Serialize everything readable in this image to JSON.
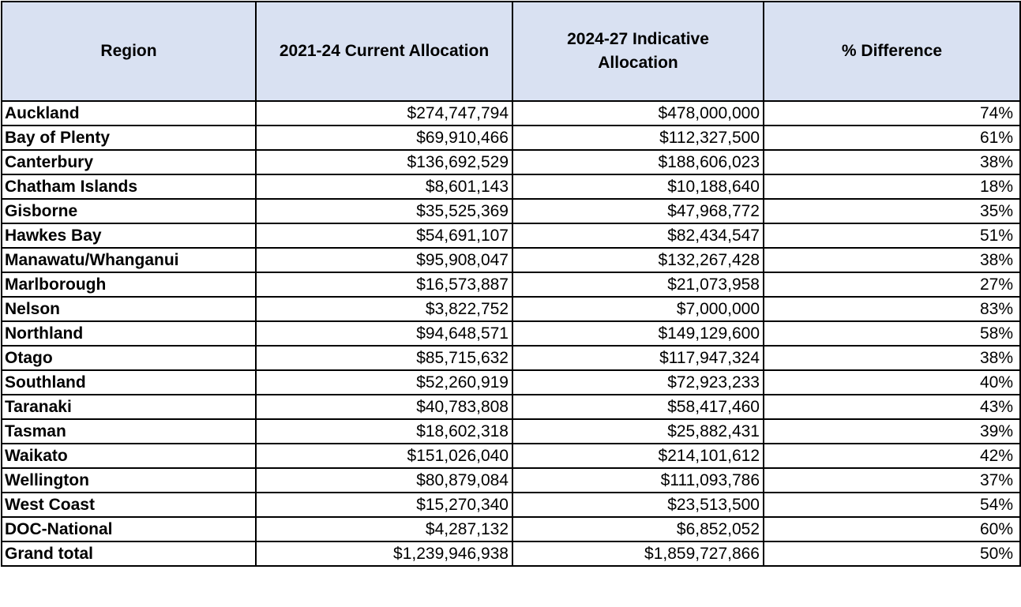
{
  "style": {
    "header_bg": "#d9e1f2",
    "border_color": "#000000",
    "text_color": "#000000"
  },
  "chart_data": {
    "type": "table",
    "columns": [
      "Region",
      "2021-24 Current Allocation",
      "2024-27 Indicative\nAllocation",
      "% Difference"
    ],
    "rows": [
      {
        "region": "Auckland",
        "current": "$274,747,794",
        "indicative": "$478,000,000",
        "difference": "74%"
      },
      {
        "region": "Bay of Plenty",
        "current": "$69,910,466",
        "indicative": "$112,327,500",
        "difference": "61%"
      },
      {
        "region": "Canterbury",
        "current": "$136,692,529",
        "indicative": "$188,606,023",
        "difference": "38%"
      },
      {
        "region": "Chatham Islands",
        "current": "$8,601,143",
        "indicative": "$10,188,640",
        "difference": "18%"
      },
      {
        "region": "Gisborne",
        "current": "$35,525,369",
        "indicative": "$47,968,772",
        "difference": "35%"
      },
      {
        "region": "Hawkes Bay",
        "current": "$54,691,107",
        "indicative": "$82,434,547",
        "difference": "51%"
      },
      {
        "region": "Manawatu/Whanganui",
        "current": "$95,908,047",
        "indicative": "$132,267,428",
        "difference": "38%"
      },
      {
        "region": "Marlborough",
        "current": "$16,573,887",
        "indicative": "$21,073,958",
        "difference": "27%"
      },
      {
        "region": "Nelson",
        "current": "$3,822,752",
        "indicative": "$7,000,000",
        "difference": "83%"
      },
      {
        "region": "Northland",
        "current": "$94,648,571",
        "indicative": "$149,129,600",
        "difference": "58%"
      },
      {
        "region": "Otago",
        "current": "$85,715,632",
        "indicative": "$117,947,324",
        "difference": "38%"
      },
      {
        "region": "Southland",
        "current": "$52,260,919",
        "indicative": "$72,923,233",
        "difference": "40%"
      },
      {
        "region": "Taranaki",
        "current": "$40,783,808",
        "indicative": "$58,417,460",
        "difference": "43%"
      },
      {
        "region": "Tasman",
        "current": "$18,602,318",
        "indicative": "$25,882,431",
        "difference": "39%"
      },
      {
        "region": "Waikato",
        "current": "$151,026,040",
        "indicative": "$214,101,612",
        "difference": "42%"
      },
      {
        "region": "Wellington",
        "current": "$80,879,084",
        "indicative": "$111,093,786",
        "difference": "37%"
      },
      {
        "region": "West Coast",
        "current": "$15,270,340",
        "indicative": "$23,513,500",
        "difference": "54%"
      },
      {
        "region": "DOC-National",
        "current": "$4,287,132",
        "indicative": "$6,852,052",
        "difference": "60%"
      },
      {
        "region": "Grand total",
        "current": "$1,239,946,938",
        "indicative": "$1,859,727,866",
        "difference": "50%"
      }
    ]
  }
}
